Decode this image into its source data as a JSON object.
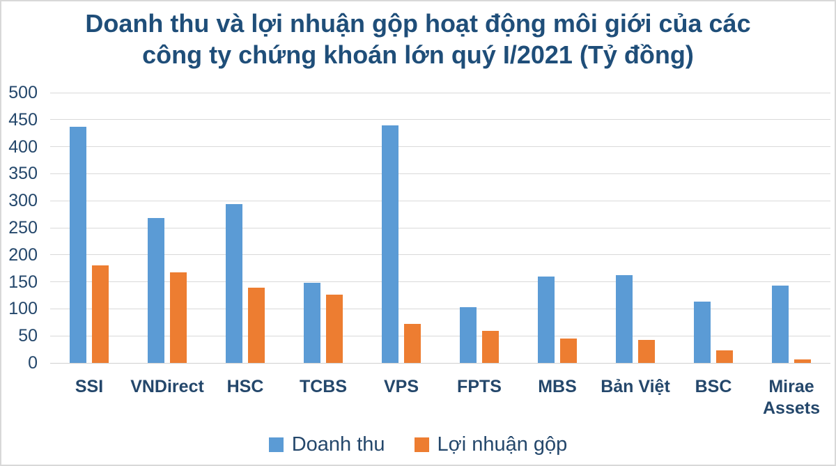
{
  "colors": {
    "title_text": "#1F4E79",
    "axis_text": "#24476B",
    "gridline": "#D9D9D9",
    "baseline": "#CFCFCF",
    "border": "#D8D8D8",
    "background": "#FFFFFF",
    "series_blue": "#5B9BD5",
    "series_orange": "#ED7D31"
  },
  "chart_data": {
    "type": "bar",
    "title": "Doanh thu và lợi nhuận gộp hoạt động môi giới của các công ty chứng khoán lớn quý I/2021 (Tỷ đồng)",
    "title_lines": [
      "Doanh thu và lợi nhuận gộp hoạt động môi giới của các",
      "công ty chứng khoán lớn quý I/2021 (Tỷ đồng)"
    ],
    "categories": [
      "SSI",
      "VNDirect",
      "HSC",
      "TCBS",
      "VPS",
      "FPTS",
      "MBS",
      "Bản Việt",
      "BSC",
      "Mirae Assets"
    ],
    "series": [
      {
        "name": "Doanh thu",
        "color": "#5B9BD5",
        "values": [
          437,
          268,
          294,
          148,
          440,
          103,
          160,
          163,
          113,
          143
        ]
      },
      {
        "name": "Lợi nhuận gộp",
        "color": "#ED7D31",
        "values": [
          180,
          167,
          139,
          126,
          72,
          59,
          45,
          42,
          23,
          7
        ]
      }
    ],
    "xlabel": "",
    "ylabel": "",
    "ylim": [
      0,
      500
    ],
    "yticks": [
      0,
      50,
      100,
      150,
      200,
      250,
      300,
      350,
      400,
      450,
      500
    ],
    "grid": "horizontal",
    "legend_position": "bottom"
  }
}
